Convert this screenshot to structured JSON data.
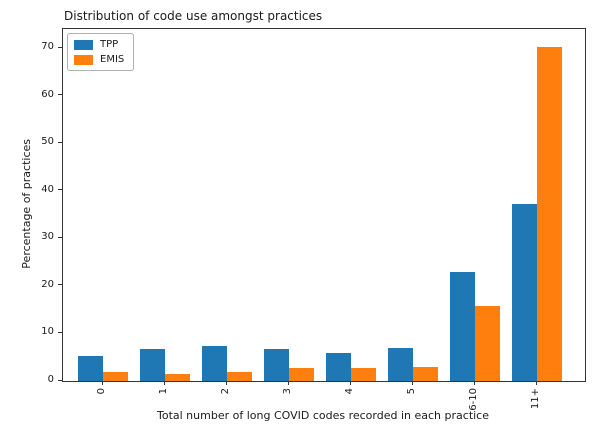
{
  "chart_data": {
    "type": "bar",
    "title": "Distribution of code use amongst practices",
    "xlabel": "Total number of long COVID codes recorded in each practice",
    "ylabel": "Percentage of practices",
    "categories": [
      "0",
      "1",
      "2",
      "3",
      "4",
      "5",
      "6-10",
      "11+"
    ],
    "series": [
      {
        "name": "TPP",
        "color": "#1f77b4",
        "values": [
          5.3,
          6.8,
          7.4,
          6.8,
          5.9,
          6.9,
          23.0,
          37.3
        ]
      },
      {
        "name": "EMIS",
        "color": "#ff7f0e",
        "values": [
          2.0,
          1.4,
          2.0,
          2.8,
          2.8,
          3.0,
          15.8,
          70.3
        ]
      }
    ],
    "ylim": [
      0,
      74
    ],
    "yticks": [
      0,
      10,
      20,
      30,
      40,
      50,
      60,
      70
    ],
    "x_tick_rotation": 90,
    "bar_width": 0.4,
    "grid": false,
    "legend_position": "upper left"
  }
}
